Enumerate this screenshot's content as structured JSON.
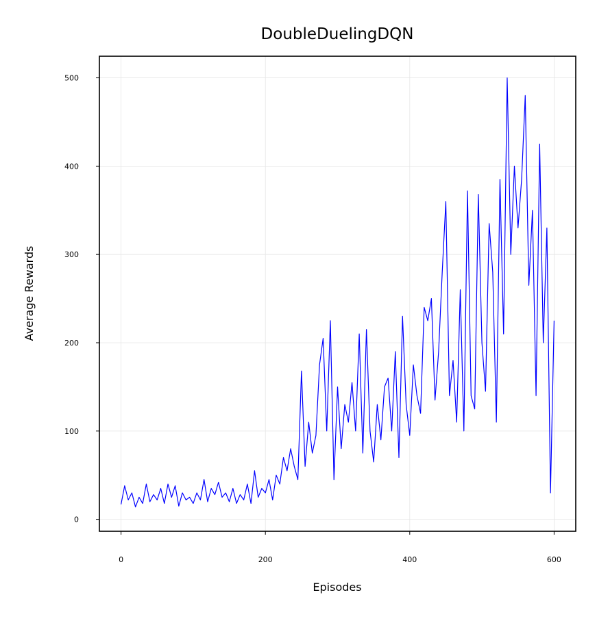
{
  "chart_data": {
    "type": "line",
    "title": "DoubleDuelingDQN",
    "xlabel": "Episodes",
    "ylabel": "Average Rewards",
    "x": [
      0,
      5,
      10,
      15,
      20,
      25,
      30,
      35,
      40,
      45,
      50,
      55,
      60,
      65,
      70,
      75,
      80,
      85,
      90,
      95,
      100,
      105,
      110,
      115,
      120,
      125,
      130,
      135,
      140,
      145,
      150,
      155,
      160,
      165,
      170,
      175,
      180,
      185,
      190,
      195,
      200,
      205,
      210,
      215,
      220,
      225,
      230,
      235,
      240,
      245,
      250,
      255,
      260,
      265,
      270,
      275,
      280,
      285,
      290,
      295,
      300,
      305,
      310,
      315,
      320,
      325,
      330,
      335,
      340,
      345,
      350,
      355,
      360,
      365,
      370,
      375,
      380,
      385,
      390,
      395,
      400,
      405,
      410,
      415,
      420,
      425,
      430,
      435,
      440,
      445,
      450,
      455,
      460,
      465,
      470,
      475,
      480,
      485,
      490,
      495,
      500,
      505,
      510,
      515,
      520,
      525,
      530,
      535,
      540,
      545,
      550,
      555,
      560,
      565,
      570,
      575,
      580,
      585,
      590,
      595,
      600
    ],
    "series": [
      {
        "name": "DoubleDuelingDQN",
        "color": "#0000ff",
        "values": [
          17,
          38,
          22,
          30,
          14,
          25,
          18,
          40,
          20,
          28,
          22,
          35,
          18,
          40,
          25,
          38,
          15,
          30,
          22,
          25,
          18,
          30,
          22,
          45,
          20,
          35,
          28,
          42,
          25,
          30,
          20,
          35,
          18,
          28,
          22,
          40,
          18,
          55,
          25,
          35,
          30,
          45,
          22,
          50,
          40,
          70,
          55,
          80,
          60,
          45,
          168,
          60,
          110,
          75,
          95,
          175,
          205,
          100,
          225,
          45,
          150,
          80,
          130,
          110,
          155,
          100,
          210,
          75,
          215,
          100,
          65,
          130,
          90,
          150,
          160,
          100,
          190,
          70,
          230,
          130,
          95,
          175,
          140,
          120,
          240,
          225,
          250,
          135,
          190,
          280,
          360,
          140,
          180,
          110,
          260,
          100,
          372,
          140,
          125,
          368,
          200,
          145,
          335,
          280,
          110,
          385,
          210,
          500,
          300,
          400,
          330,
          385,
          480,
          265,
          350,
          140,
          425,
          200,
          330,
          30,
          225
        ]
      }
    ],
    "xlim": [
      -30,
      630
    ],
    "ylim": [
      -13.5,
      524.5
    ],
    "xticks": [
      0,
      200,
      400,
      600
    ],
    "yticks": [
      0,
      100,
      200,
      300,
      400,
      500
    ],
    "grid": true
  }
}
